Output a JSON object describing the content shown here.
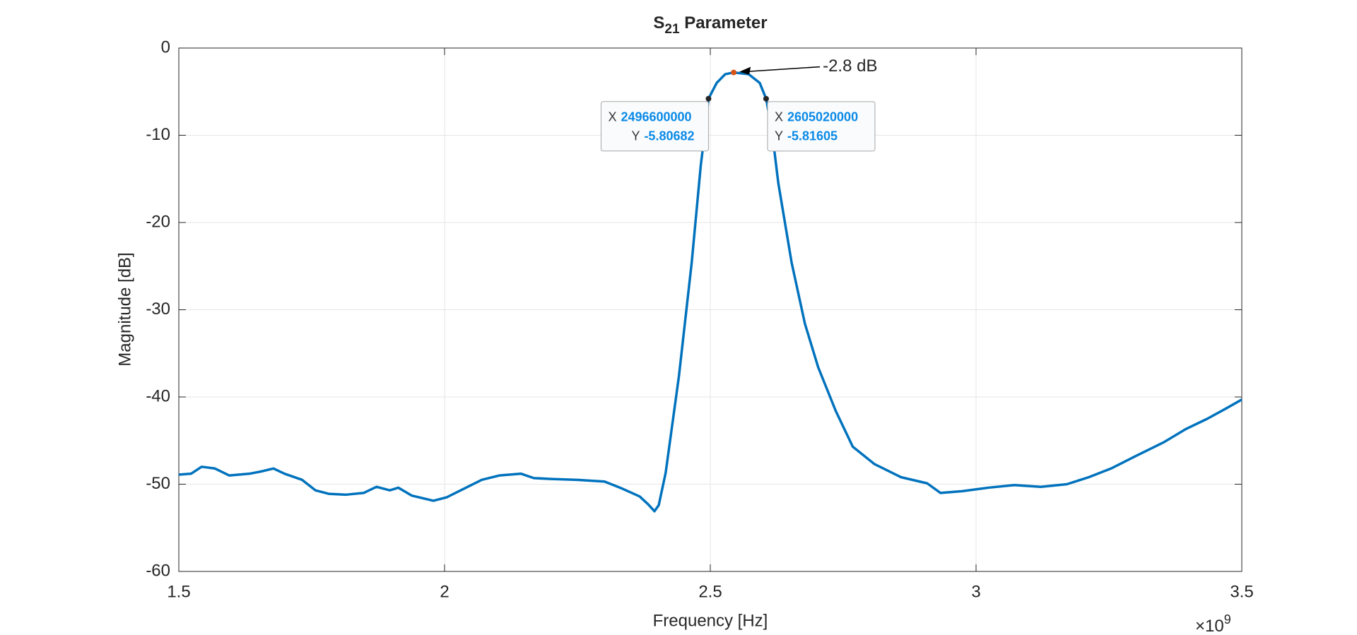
{
  "chart_data": {
    "type": "line",
    "title": {
      "base": "S",
      "subscript": "21",
      "rest": " Parameter"
    },
    "xlabel": "Frequency [Hz]",
    "ylabel": "Magnitude [dB]",
    "x_multiplier": {
      "base": "×10",
      "power": "9"
    },
    "x": [
      1500000000,
      1523000000,
      1543000000,
      1568000000,
      1595000000,
      1633000000,
      1658000000,
      1678000000,
      1699000000,
      1732000000,
      1757000000,
      1782000000,
      1815000000,
      1848000000,
      1872000000,
      1897000000,
      1913000000,
      1938000000,
      1979000000,
      2004000000,
      2037000000,
      2070000000,
      2103000000,
      2144000000,
      2168000000,
      2201000000,
      2250000000,
      2301000000,
      2334000000,
      2367000000,
      2383000000,
      2395000000,
      2403000000,
      2416000000,
      2441000000,
      2465000000,
      2482000000,
      2492000000,
      2496600000,
      2512000000,
      2528000000,
      2544000000,
      2572000000,
      2593000000,
      2605020000,
      2616000000,
      2628000000,
      2653000000,
      2678000000,
      2703000000,
      2736000000,
      2768000000,
      2809000000,
      2859000000,
      2908000000,
      2933000000,
      2974000000,
      3023000000,
      3072000000,
      3122000000,
      3171000000,
      3212000000,
      3254000000,
      3303000000,
      3353000000,
      3394000000,
      3435000000,
      3468000000,
      3500000000
    ],
    "series": [
      {
        "name": "S21",
        "color": "#0072bd",
        "values": [
          -48.9,
          -48.8,
          -48.0,
          -48.2,
          -49.0,
          -48.8,
          -48.5,
          -48.2,
          -48.8,
          -49.5,
          -50.7,
          -51.1,
          -51.2,
          -51.0,
          -50.3,
          -50.7,
          -50.4,
          -51.3,
          -51.9,
          -51.5,
          -50.5,
          -49.5,
          -49.0,
          -48.8,
          -49.3,
          -49.4,
          -49.5,
          -49.7,
          -50.5,
          -51.4,
          -52.3,
          -53.1,
          -52.4,
          -48.7,
          -37.6,
          -24.6,
          -13.5,
          -8.5,
          -5.80682,
          -4.0,
          -3.0,
          -2.8,
          -3.0,
          -4.0,
          -5.81605,
          -9.5,
          -15.5,
          -24.6,
          -31.6,
          -36.6,
          -41.6,
          -45.7,
          -47.7,
          -49.2,
          -49.9,
          -51.0,
          -50.8,
          -50.4,
          -50.1,
          -50.3,
          -50.0,
          -49.2,
          -48.2,
          -46.7,
          -45.2,
          -43.7,
          -42.5,
          -41.4,
          -40.3
        ]
      }
    ],
    "xlim": [
      1500000000,
      3500000000
    ],
    "xticks": [
      {
        "value": 1500000000,
        "label": "1.5"
      },
      {
        "value": 2000000000,
        "label": "2"
      },
      {
        "value": 2500000000,
        "label": "2.5"
      },
      {
        "value": 3000000000,
        "label": "3"
      },
      {
        "value": 3500000000,
        "label": "3.5"
      }
    ],
    "ylim": [
      -60,
      0
    ],
    "yticks": [
      -60,
      -50,
      -40,
      -30,
      -20,
      -10,
      0
    ],
    "grid": true,
    "annotation": {
      "text": "-2.8 dB",
      "x": 2544000000,
      "y": -2.8,
      "color": "#d95319"
    },
    "datatips": [
      {
        "x_label": "X",
        "x": 2496600000,
        "y_label": "Y",
        "y": -5.80682,
        "side": "left"
      },
      {
        "x_label": "X",
        "x": 2605020000,
        "y_label": "Y",
        "y": -5.81605,
        "side": "right"
      }
    ]
  }
}
